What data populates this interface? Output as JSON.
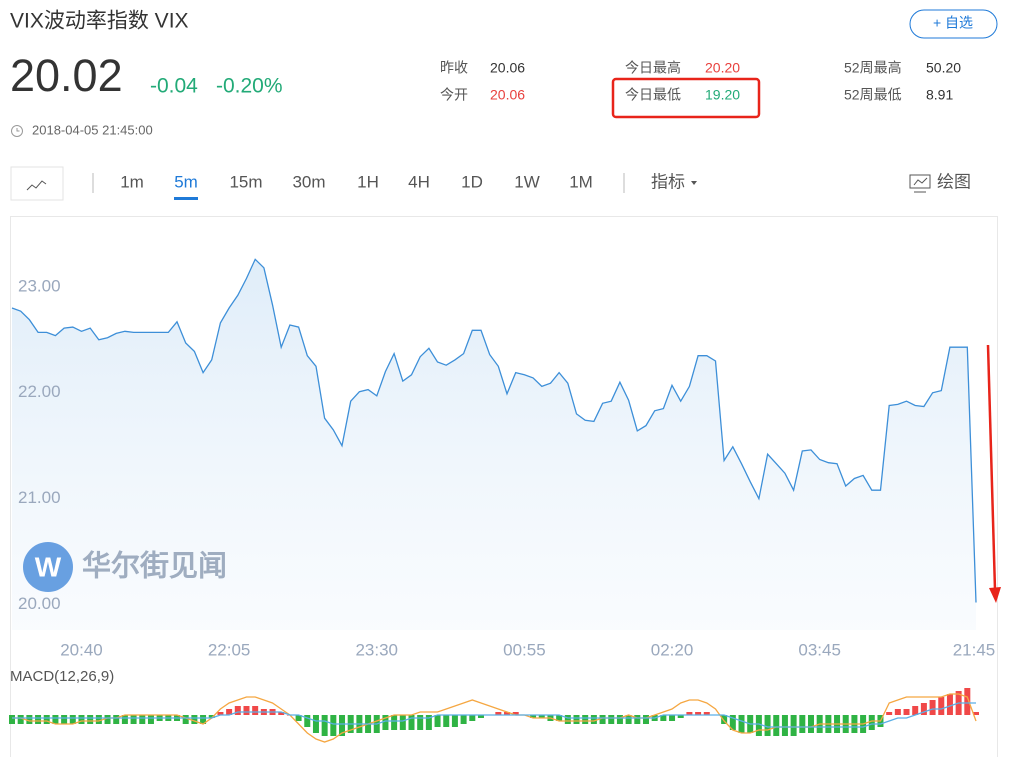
{
  "header": {
    "title": "VIX波动率指数 VIX",
    "price": "20.02",
    "change": "-0.04",
    "change_pct": "-0.20%",
    "timestamp": "2018-04-05 21:45:00",
    "watch_button": "+ 自选",
    "change_color": "#22aa77"
  },
  "stats": [
    {
      "label": "昨收",
      "value": "20.06",
      "color": "#333333"
    },
    {
      "label": "今开",
      "value": "20.06",
      "color": "#e8403d"
    },
    {
      "label": "今日最高",
      "value": "20.20",
      "color": "#e8403d"
    },
    {
      "label": "今日最低",
      "value": "19.20",
      "color": "#22aa77"
    },
    {
      "label": "52周最高",
      "value": "50.20",
      "color": "#333333"
    },
    {
      "label": "52周最低",
      "value": "8.91",
      "color": "#333333"
    }
  ],
  "toolbar": {
    "periods": [
      "1m",
      "5m",
      "15m",
      "30m",
      "1H",
      "4H",
      "1D",
      "1W",
      "1M"
    ],
    "active_period": 1,
    "indicator": "指标",
    "draw": "绘图"
  },
  "chart": {
    "type": "line",
    "color": "#3d8fd8",
    "watermark": "华尔街见闻",
    "ylim": [
      19.76,
      23.65
    ],
    "yticks": [
      {
        "value": 20,
        "label": "20.00"
      },
      {
        "value": 21,
        "label": "21.00"
      },
      {
        "value": 22,
        "label": "22.00"
      },
      {
        "value": 23,
        "label": "23.00"
      }
    ],
    "categories": [
      null,
      null,
      null,
      null,
      null,
      null,
      null,
      null,
      "20:40",
      null,
      null,
      null,
      null,
      null,
      null,
      null,
      null,
      null,
      null,
      null,
      null,
      null,
      null,
      null,
      null,
      "22:05",
      null,
      null,
      null,
      null,
      null,
      null,
      null,
      null,
      null,
      null,
      null,
      null,
      null,
      null,
      null,
      null,
      "23:30",
      null,
      null,
      null,
      null,
      null,
      null,
      null,
      null,
      null,
      null,
      null,
      null,
      null,
      null,
      null,
      null,
      "00:55",
      null,
      null,
      null,
      null,
      null,
      null,
      null,
      null,
      null,
      null,
      null,
      null,
      null,
      null,
      null,
      null,
      "02:20",
      null,
      null,
      null,
      null,
      null,
      null,
      null,
      null,
      null,
      null,
      null,
      null,
      null,
      null,
      null,
      null,
      "03:45",
      null,
      null,
      null,
      null,
      null,
      null,
      null,
      null,
      null,
      null,
      null,
      null,
      null,
      null,
      null,
      null,
      null,
      "21:45"
    ],
    "values": [
      22.8,
      22.77,
      22.69,
      22.57,
      22.57,
      22.54,
      22.61,
      22.62,
      22.58,
      22.61,
      22.5,
      22.52,
      22.56,
      22.58,
      22.57,
      22.57,
      22.57,
      22.57,
      22.57,
      22.67,
      22.47,
      22.39,
      22.19,
      22.31,
      22.66,
      22.8,
      22.92,
      23.08,
      23.26,
      23.18,
      22.83,
      22.43,
      22.64,
      22.62,
      22.35,
      22.25,
      21.76,
      21.65,
      21.5,
      21.92,
      22.01,
      22.03,
      21.97,
      22.2,
      22.37,
      22.11,
      22.17,
      22.34,
      22.42,
      22.29,
      22.26,
      22.31,
      22.37,
      22.59,
      22.59,
      22.36,
      22.25,
      21.99,
      22.19,
      22.17,
      22.14,
      22.06,
      22.09,
      22.19,
      22.09,
      21.8,
      21.74,
      21.73,
      21.9,
      21.92,
      22.1,
      21.93,
      21.64,
      21.69,
      21.83,
      21.85,
      22.07,
      21.92,
      22.06,
      22.35,
      22.35,
      22.3,
      21.36,
      21.49,
      21.33,
      21.16,
      21.0,
      21.42,
      21.33,
      21.24,
      21.08,
      21.45,
      21.46,
      21.37,
      21.34,
      21.33,
      21.12,
      21.19,
      21.22,
      21.08,
      21.08,
      21.88,
      21.89,
      21.92,
      21.88,
      21.87,
      22.0,
      22.02,
      22.43,
      22.43,
      22.43,
      20.02
    ]
  },
  "macd": {
    "title": "MACD(12,26,9)",
    "ylim": [
      -0.1,
      0.1
    ],
    "up_color": "#f04848",
    "down_color": "#2fb344",
    "hist": [
      -0.03,
      -0.03,
      -0.03,
      -0.03,
      -0.03,
      -0.03,
      -0.03,
      -0.03,
      -0.03,
      -0.03,
      -0.03,
      -0.03,
      -0.03,
      -0.03,
      -0.03,
      -0.03,
      -0.03,
      -0.02,
      -0.02,
      -0.02,
      -0.03,
      -0.03,
      -0.03,
      -0.01,
      0.01,
      0.02,
      0.03,
      0.03,
      0.03,
      0.02,
      0.02,
      0.01,
      0.0,
      -0.02,
      -0.04,
      -0.06,
      -0.07,
      -0.07,
      -0.07,
      -0.06,
      -0.06,
      -0.06,
      -0.06,
      -0.05,
      -0.05,
      -0.05,
      -0.05,
      -0.05,
      -0.05,
      -0.04,
      -0.04,
      -0.04,
      -0.03,
      -0.02,
      -0.01,
      0.0,
      0.01,
      0.01,
      0.01,
      0.0,
      -0.01,
      -0.01,
      -0.02,
      -0.02,
      -0.03,
      -0.03,
      -0.03,
      -0.03,
      -0.03,
      -0.03,
      -0.03,
      -0.03,
      -0.03,
      -0.03,
      -0.02,
      -0.02,
      -0.02,
      -0.01,
      0.01,
      0.01,
      0.01,
      0.0,
      -0.03,
      -0.05,
      -0.06,
      -0.06,
      -0.07,
      -0.07,
      -0.07,
      -0.07,
      -0.07,
      -0.06,
      -0.06,
      -0.06,
      -0.06,
      -0.06,
      -0.06,
      -0.06,
      -0.06,
      -0.05,
      -0.04,
      0.01,
      0.02,
      0.02,
      0.03,
      0.04,
      0.05,
      0.06,
      0.07,
      0.08,
      0.09,
      0.01
    ],
    "dif": {
      "color": "#f5a742",
      "values": [
        -0.01,
        -0.01,
        -0.02,
        -0.02,
        -0.02,
        -0.03,
        -0.03,
        -0.03,
        -0.02,
        -0.02,
        -0.02,
        -0.01,
        -0.01,
        0.0,
        0.0,
        0.0,
        0.0,
        0.0,
        0.0,
        0.0,
        -0.01,
        -0.02,
        -0.03,
        -0.01,
        0.02,
        0.04,
        0.05,
        0.06,
        0.06,
        0.05,
        0.04,
        0.02,
        0.0,
        -0.03,
        -0.06,
        -0.08,
        -0.09,
        -0.08,
        -0.06,
        -0.05,
        -0.04,
        -0.03,
        -0.02,
        -0.01,
        0.0,
        0.0,
        0.0,
        0.01,
        0.01,
        0.01,
        0.02,
        0.03,
        0.04,
        0.05,
        0.04,
        0.03,
        0.02,
        0.01,
        0.0,
        0.0,
        -0.01,
        -0.01,
        -0.01,
        -0.02,
        -0.02,
        -0.02,
        -0.02,
        -0.02,
        -0.01,
        -0.01,
        -0.01,
        0.0,
        -0.01,
        -0.01,
        0.0,
        0.01,
        0.02,
        0.04,
        0.05,
        0.05,
        0.04,
        0.02,
        -0.02,
        -0.05,
        -0.06,
        -0.06,
        -0.05,
        -0.05,
        -0.04,
        -0.04,
        -0.04,
        -0.04,
        -0.04,
        -0.03,
        -0.03,
        -0.03,
        -0.03,
        -0.03,
        -0.03,
        -0.02,
        -0.02,
        0.04,
        0.05,
        0.06,
        0.06,
        0.06,
        0.06,
        0.06,
        0.07,
        0.07,
        0.06,
        -0.02
      ]
    },
    "dea": {
      "color": "#5aafe6",
      "values": [
        -0.01,
        -0.01,
        -0.01,
        -0.01,
        -0.01,
        -0.01,
        -0.01,
        -0.01,
        -0.01,
        -0.01,
        -0.01,
        -0.01,
        -0.01,
        -0.01,
        -0.01,
        -0.01,
        -0.01,
        -0.01,
        -0.01,
        -0.01,
        -0.01,
        -0.01,
        -0.01,
        -0.01,
        0.0,
        0.0,
        0.01,
        0.01,
        0.01,
        0.01,
        0.01,
        0.01,
        0.0,
        0.0,
        -0.01,
        -0.02,
        -0.02,
        -0.03,
        -0.03,
        -0.03,
        -0.03,
        -0.03,
        -0.03,
        -0.02,
        -0.02,
        -0.02,
        -0.01,
        -0.01,
        -0.01,
        0.0,
        0.0,
        0.0,
        0.0,
        0.0,
        0.0,
        0.0,
        0.0,
        0.0,
        0.0,
        0.0,
        0.0,
        0.0,
        0.0,
        0.0,
        -0.01,
        -0.01,
        -0.01,
        -0.01,
        -0.01,
        -0.01,
        -0.01,
        -0.01,
        -0.01,
        -0.01,
        -0.01,
        0.0,
        0.0,
        0.0,
        0.0,
        0.0,
        0.0,
        0.0,
        0.0,
        -0.01,
        -0.02,
        -0.03,
        -0.03,
        -0.04,
        -0.04,
        -0.04,
        -0.04,
        -0.04,
        -0.04,
        -0.04,
        -0.04,
        -0.04,
        -0.04,
        -0.04,
        -0.04,
        -0.03,
        -0.03,
        -0.02,
        -0.01,
        -0.01,
        0.0,
        0.01,
        0.02,
        0.02,
        0.03,
        0.04,
        0.04,
        0.04
      ]
    }
  }
}
